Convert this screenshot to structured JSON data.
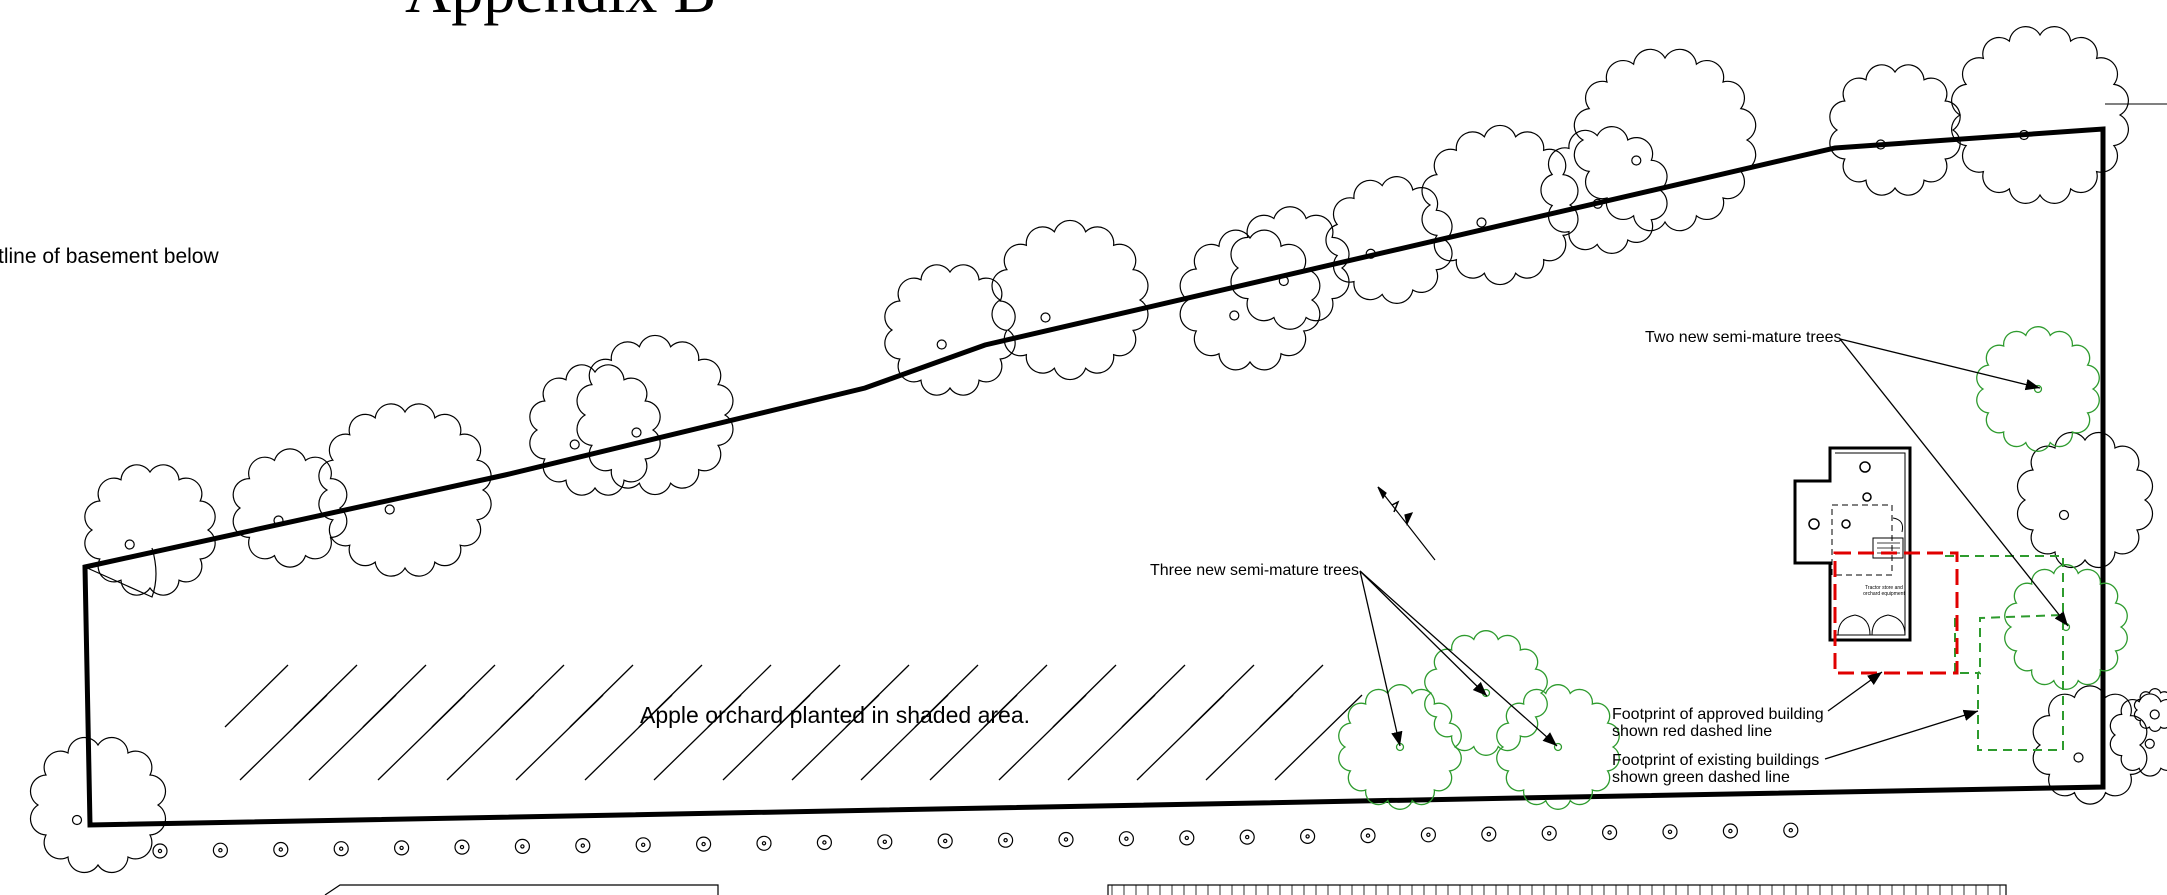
{
  "title": "Appendix B",
  "labels": {
    "basement": "tline of basement below",
    "orchard": "Apple orchard planted in shaded area.",
    "three_trees": "Three new semi-mature trees",
    "two_trees": "Two new semi-mature trees",
    "approved_line1": "Footprint of approved building",
    "approved_line2": "shown red dashed line",
    "existing_line1": "Footprint of existing buildings",
    "existing_line2": "shown green dashed line",
    "building_note_line1": "Tractor store and",
    "building_note_line2": "orchard equipment"
  },
  "colors": {
    "line": "#000000",
    "new_tree": "#2e9b2e",
    "approved_building": "#e00000",
    "existing_building": "#2e9b2e"
  }
}
